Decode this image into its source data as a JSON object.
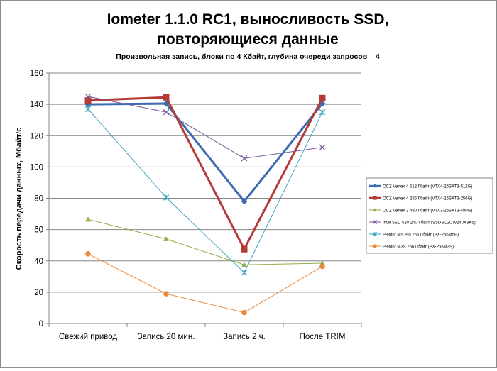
{
  "chart_data": {
    "type": "line",
    "title": "Iometer 1.1.0 RC1, выносливость SSD,",
    "title_line2": "повторяющиеся данные",
    "subtitle": "Произвольная  запись,  блоки по 4 Кбайт,  глубина очереди запросов  – 4",
    "ylabel": "Скорость  передачи данных, Мбайт/с",
    "xlabel": "",
    "categories": [
      "Свежий  привод",
      "Запись 20 мин.",
      "Запись 2 ч.",
      "После TRIM"
    ],
    "ylim": [
      0,
      160
    ],
    "yticks": [
      0,
      20,
      40,
      60,
      80,
      100,
      120,
      140,
      160
    ],
    "grid": "horizontal",
    "legend_position": "right",
    "series": [
      {
        "name": "OCZ Vertex  4  512  Гбайт  (VTX4-25SAT3-512G)",
        "values": [
          140,
          140.5,
          78,
          140.5
        ],
        "color": "#3e6aaf",
        "marker": "diamond",
        "width": 3
      },
      {
        "name": "OCZ Vertex  4  256  Гбайт  (VTX4-25SAT3-256G)",
        "values": [
          142.5,
          144.5,
          47.5,
          144
        ],
        "color": "#b43a37",
        "marker": "square",
        "width": 3
      },
      {
        "name": "OCZ Vertex  3  480  Гбайт  (VTX3-25SAT3-480G)",
        "values": [
          66.5,
          54,
          37.5,
          38.5
        ],
        "color": "#8eae48",
        "marker": "triangle",
        "width": 1
      },
      {
        "name": "Intel SSD 520  240  Гбайт  (SSDSC2CW240A3K5)",
        "values": [
          145,
          135,
          105.5,
          112.5
        ],
        "color": "#7a5a9c",
        "marker": "x",
        "width": 1
      },
      {
        "name": "Plextor M5 Pro  256  Гбайт  (PX-256M5P)",
        "values": [
          137,
          80.5,
          32.5,
          135
        ],
        "color": "#3ca6bd",
        "marker": "star",
        "width": 1
      },
      {
        "name": "Plextor M3S 256  Гбайт  (PX-256M3S)",
        "values": [
          44.5,
          19,
          7,
          36.5
        ],
        "color": "#e88a3a",
        "marker": "circle",
        "width": 1
      }
    ]
  }
}
